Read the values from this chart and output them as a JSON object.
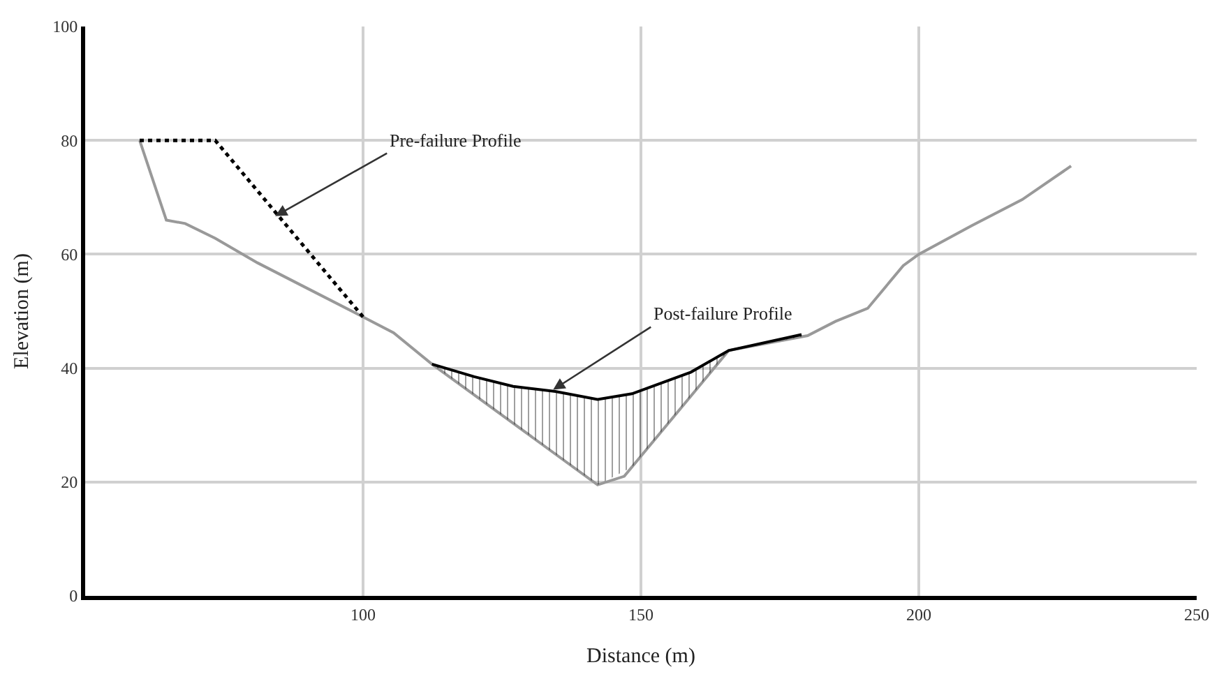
{
  "chart_data": {
    "type": "line",
    "xlabel": "Distance (m)",
    "ylabel": "Elevation (m)",
    "xlim": [
      50,
      250
    ],
    "xticks": [
      100,
      150,
      200,
      250
    ],
    "ylim": [
      0,
      100
    ],
    "yticks": [
      0,
      20,
      40,
      60,
      80,
      100
    ],
    "grid": true,
    "marker": "none",
    "series": [
      {
        "color": "#999999",
        "line_style": "solid",
        "x": [
          59.8,
          64.6,
          68,
          73.4,
          81,
          90,
          100,
          105.5,
          112.4,
          142.2,
          147,
          165.8,
          180,
          185,
          190.8,
          197.2,
          200,
          209.5,
          218.6,
          227.4
        ],
        "values": [
          80,
          66,
          65.4,
          62.8,
          58.5,
          54,
          49,
          46.2,
          40.7,
          19.5,
          21,
          43.1,
          45.7,
          48.2,
          50.5,
          58,
          60,
          65,
          69.6,
          75.5
        ]
      },
      {
        "color": "#000000",
        "line_style": "dotted",
        "x": [
          59.8,
          73.4,
          100
        ],
        "values": [
          80,
          80,
          49
        ]
      },
      {
        "color": "#000000",
        "line_style": "solid",
        "x": [
          112.4,
          120,
          127,
          134.6,
          142.2,
          148.4,
          159,
          165.8,
          178.9
        ],
        "values": [
          40.7,
          38.5,
          36.8,
          35.9,
          34.5,
          35.5,
          39.3,
          43.1,
          45.9
        ],
        "lower": [
          40.7,
          35.3,
          30.3,
          24.9,
          19.5,
          22.6,
          35.1,
          43.1,
          45.5
        ],
        "upper": [
          40.7,
          38.5,
          36.8,
          35.9,
          34.5,
          35.5,
          39.3,
          43.1,
          45.9
        ]
      }
    ],
    "annotations": [
      {
        "text": "Pre-failure Profile",
        "x": 84.2,
        "y": 66.7
      },
      {
        "text": "Post-failure Profile",
        "x": 134.2,
        "y": 36.2
      }
    ]
  }
}
